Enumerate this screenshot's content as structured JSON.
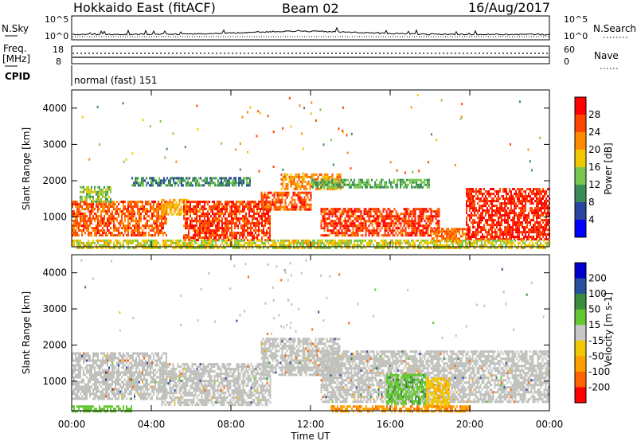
{
  "header": {
    "station": "Hokkaido East (fitACF)",
    "beam": "Beam 02",
    "date": "16/Aug/2017"
  },
  "top_panels": {
    "nsky_label": "N.Sky",
    "nsky_ticks": [
      "10^5",
      "10^0"
    ],
    "nsearch_label": "N.Search",
    "nsearch_ticks": [
      "10^5",
      "10^0"
    ],
    "freq_label_1": "Freq.",
    "freq_label_2": "[MHz]",
    "freq_ticks": [
      "18",
      "8"
    ],
    "nave_label": "Nave",
    "nave_ticks": [
      "60",
      "0"
    ],
    "cpid_label": "CPID",
    "cpid_value": "normal (fast) 151"
  },
  "colors": {
    "power_scale": [
      "#0000ff",
      "#2846a0",
      "#3c8c5a",
      "#78c850",
      "#f0c800",
      "#ff8c00",
      "#ff4600",
      "#ff0000"
    ],
    "velocity_scale": [
      "#0000cd",
      "#2850a0",
      "#3c8c3c",
      "#64c832",
      "#c8c8c8",
      "#f0c800",
      "#ffa000",
      "#ff6400",
      "#ff0000"
    ],
    "ground_scatter": "#c0c0bc"
  },
  "chart_data": [
    {
      "type": "heatmap",
      "name": "power",
      "ylabel": "Slant Range [km]",
      "yticks": [
        "1000",
        "2000",
        "3000",
        "4000"
      ],
      "ylim": [
        180,
        4500
      ],
      "xlim": [
        0,
        24
      ],
      "colorbar_label": "Power [dB]",
      "colorbar_ticks": [
        "4",
        "8",
        "12",
        "16",
        "20",
        "24",
        "28"
      ],
      "colorbar_range": [
        0,
        32
      ],
      "bands": [
        {
          "t0": 0.0,
          "t1": 4.8,
          "r0": 500,
          "r1": 1450,
          "level": 25
        },
        {
          "t0": 0.4,
          "t1": 2.0,
          "r0": 1400,
          "r1": 1850,
          "level": 14
        },
        {
          "t0": 4.5,
          "t1": 5.8,
          "r0": 1100,
          "r1": 1500,
          "level": 20
        },
        {
          "t0": 5.6,
          "t1": 10.0,
          "r0": 350,
          "r1": 1450,
          "level": 27
        },
        {
          "t0": 9.5,
          "t1": 12.0,
          "r0": 1200,
          "r1": 1700,
          "level": 26
        },
        {
          "t0": 10.5,
          "t1": 13.5,
          "r0": 1750,
          "r1": 2200,
          "level": 22
        },
        {
          "t0": 12.5,
          "t1": 18.5,
          "r0": 500,
          "r1": 1250,
          "level": 27
        },
        {
          "t0": 18.0,
          "t1": 20.0,
          "r0": 350,
          "r1": 700,
          "level": 24
        },
        {
          "t0": 19.8,
          "t1": 24.0,
          "r0": 400,
          "r1": 1800,
          "level": 28
        },
        {
          "t0": 3.0,
          "t1": 9.0,
          "r0": 1900,
          "r1": 2100,
          "level": 10
        },
        {
          "t0": 12.0,
          "t1": 18.0,
          "r0": 1850,
          "r1": 2050,
          "level": 12
        },
        {
          "t0": 0.0,
          "t1": 24.0,
          "r0": 180,
          "r1": 380,
          "level": 17
        }
      ]
    },
    {
      "type": "heatmap",
      "name": "velocity",
      "ylabel": "Slant Range [km]",
      "yticks": [
        "1000",
        "2000",
        "3000",
        "4000"
      ],
      "ylim": [
        180,
        4500
      ],
      "xlim": [
        0,
        24
      ],
      "colorbar_label": "Velocity [m s-1]",
      "colorbar_ticks": [
        "200",
        "100",
        "50",
        "15",
        "-15",
        "-50",
        "-100",
        "-200"
      ],
      "colorbar_range": [
        -250,
        250
      ],
      "bands": [
        {
          "t0": 0.0,
          "t1": 4.8,
          "r0": 500,
          "r1": 1800,
          "v": 0
        },
        {
          "t0": 4.5,
          "t1": 10.0,
          "r0": 350,
          "r1": 1500,
          "v": 0
        },
        {
          "t0": 9.5,
          "t1": 13.5,
          "r0": 1200,
          "r1": 2200,
          "v": 0
        },
        {
          "t0": 12.5,
          "t1": 24.0,
          "r0": 400,
          "r1": 1850,
          "v": 0
        },
        {
          "t0": 15.8,
          "t1": 17.8,
          "r0": 350,
          "r1": 1200,
          "v": 40
        },
        {
          "t0": 17.8,
          "t1": 19.0,
          "r0": 300,
          "r1": 1100,
          "v": -40
        },
        {
          "t0": 13.0,
          "t1": 20.0,
          "r0": 180,
          "r1": 330,
          "v": -90
        },
        {
          "t0": 0.0,
          "t1": 3.0,
          "r0": 180,
          "r1": 330,
          "v": 30
        }
      ]
    }
  ],
  "xaxis": {
    "ticks": [
      "00:00",
      "04:00",
      "08:00",
      "12:00",
      "16:00",
      "20:00",
      "00:00"
    ],
    "label": "Time UT"
  }
}
